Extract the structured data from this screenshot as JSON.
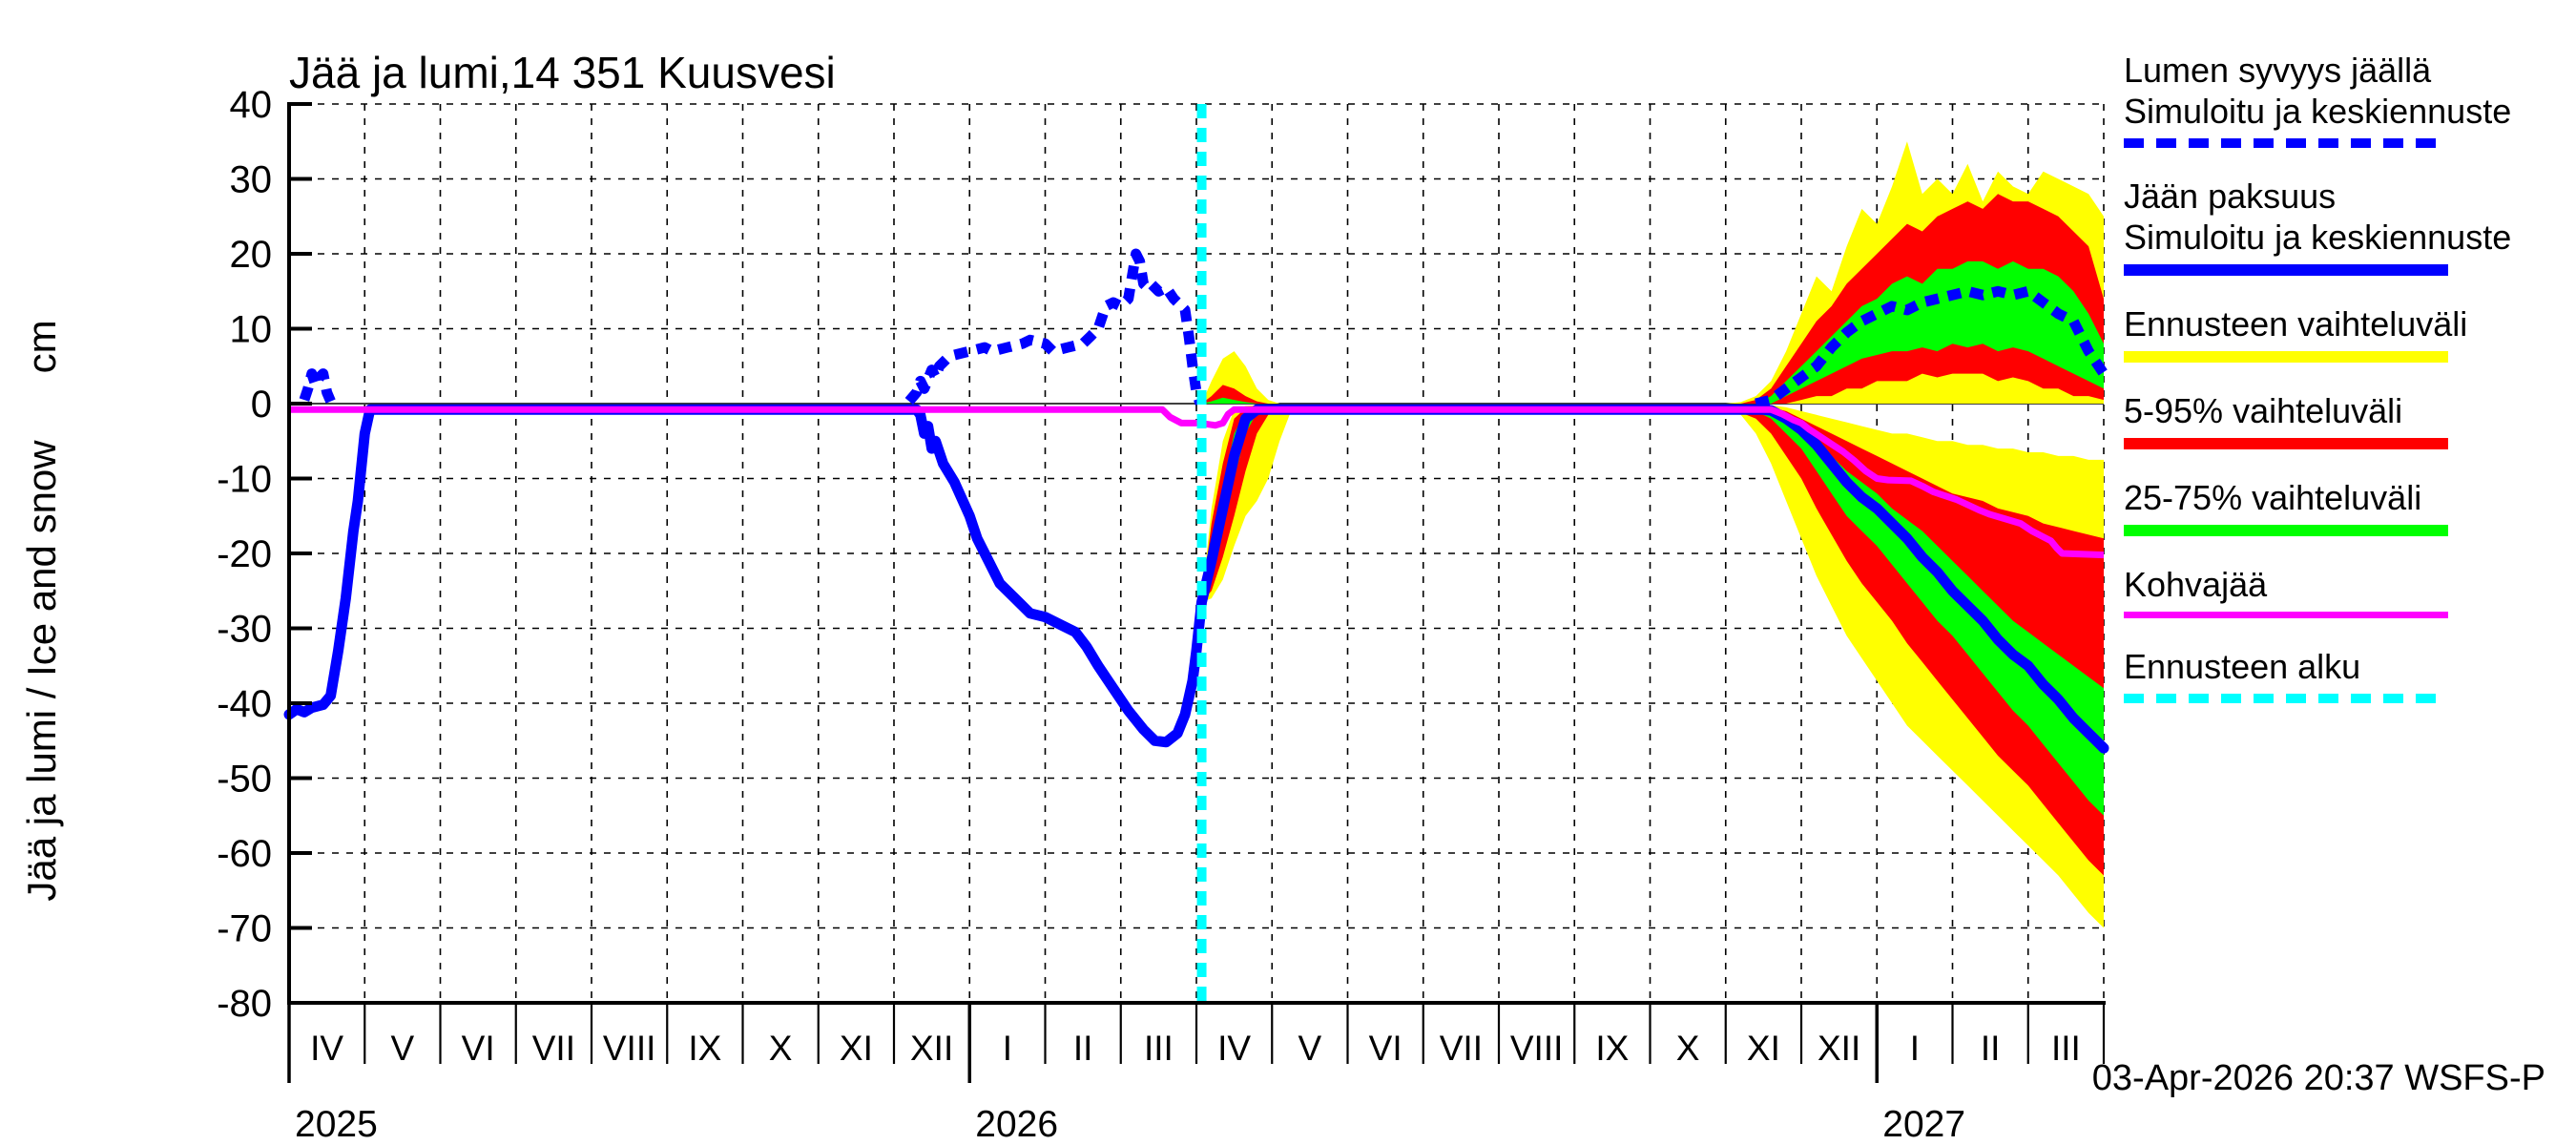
{
  "title": "Jää ja lumi,14 351 Kuusvesi",
  "timestamp": "03-Apr-2026 20:37 WSFS-P",
  "y_axis": {
    "label": "Jää ja lumi / Ice and snow",
    "unit": "cm",
    "min": -80,
    "max": 40,
    "tick_values": [
      40,
      30,
      20,
      10,
      0,
      -10,
      -20,
      -30,
      -40,
      -50,
      -60,
      -70,
      -80
    ]
  },
  "x_axis": {
    "month_labels": [
      "IV",
      "V",
      "VI",
      "VII",
      "VIII",
      "IX",
      "X",
      "XI",
      "XII",
      "I",
      "II",
      "III",
      "IV",
      "V",
      "VI",
      "VII",
      "VIII",
      "IX",
      "X",
      "XI",
      "XII",
      "I",
      "II",
      "III"
    ],
    "year_labels": [
      {
        "label": "2025",
        "month_index": 0
      },
      {
        "label": "2026",
        "month_index": 9
      },
      {
        "label": "2027",
        "month_index": 21
      }
    ]
  },
  "colors": {
    "simulated": "#0000ff",
    "range_minmax": "#ffff00",
    "range_5_95": "#ff0000",
    "range_25_75": "#00ff00",
    "kohvajaa": "#ff00ff",
    "forecast_start": "#00ffff",
    "axis": "#000000",
    "background": "#ffffff"
  },
  "legend": [
    {
      "name": "lumen-syvyys",
      "lines": [
        "Lumen syvyys jäällä",
        "Simuloitu ja keskiennuste"
      ],
      "sample": {
        "color": "#0000ff",
        "style": "dashed",
        "thickness": 10
      }
    },
    {
      "name": "jaan-paksuus",
      "lines": [
        "Jään paksuus",
        "Simuloitu ja keskiennuste"
      ],
      "sample": {
        "color": "#0000ff",
        "style": "solid",
        "thickness": 12
      }
    },
    {
      "name": "ennusteen-vaihteluvali",
      "lines": [
        "Ennusteen vaihteluväli"
      ],
      "sample": {
        "color": "#ffff00",
        "style": "solid",
        "thickness": 12
      }
    },
    {
      "name": "vaihteluvali-5-95",
      "lines": [
        "5-95% vaihteluväli"
      ],
      "sample": {
        "color": "#ff0000",
        "style": "solid",
        "thickness": 12
      }
    },
    {
      "name": "vaihteluvali-25-75",
      "lines": [
        "25-75% vaihteluväli"
      ],
      "sample": {
        "color": "#00ff00",
        "style": "solid",
        "thickness": 12
      }
    },
    {
      "name": "kohvajaa",
      "lines": [
        "Kohvajää"
      ],
      "sample": {
        "color": "#ff00ff",
        "style": "solid",
        "thickness": 7
      }
    },
    {
      "name": "ennusteen-alku",
      "lines": [
        "Ennusteen alku"
      ],
      "sample": {
        "color": "#00ffff",
        "style": "dashed",
        "thickness": 10
      }
    }
  ],
  "chart_data": {
    "type": "line",
    "x_unit": "months since 1 Apr 2025",
    "y_unit": "cm",
    "xlim": [
      0,
      24
    ],
    "ylim": [
      -80,
      40
    ],
    "grid": "dotted, every month vertical, every 10 cm horizontal, solid line at 0",
    "forecast_start_t": 12.07,
    "ice_simulated_and_median": [
      [
        0,
        -41.5
      ],
      [
        0.1,
        -40.8
      ],
      [
        0.2,
        -41.2
      ],
      [
        0.3,
        -40.6
      ],
      [
        0.45,
        -40.2
      ],
      [
        0.55,
        -39
      ],
      [
        0.65,
        -33
      ],
      [
        0.75,
        -26
      ],
      [
        0.85,
        -17
      ],
      [
        0.91,
        -13
      ],
      [
        1.0,
        -4
      ],
      [
        1.07,
        -0.8
      ],
      [
        8.3,
        -0.8
      ],
      [
        8.35,
        -1.5
      ],
      [
        8.4,
        -4
      ],
      [
        8.45,
        -3
      ],
      [
        8.5,
        -6
      ],
      [
        8.55,
        -5
      ],
      [
        8.65,
        -8
      ],
      [
        8.8,
        -10.5
      ],
      [
        9.0,
        -15
      ],
      [
        9.1,
        -18
      ],
      [
        9.25,
        -21
      ],
      [
        9.4,
        -24
      ],
      [
        9.6,
        -26
      ],
      [
        9.8,
        -28
      ],
      [
        10.0,
        -28.5
      ],
      [
        10.2,
        -29.5
      ],
      [
        10.4,
        -30.5
      ],
      [
        10.55,
        -32.5
      ],
      [
        10.7,
        -35
      ],
      [
        10.9,
        -38
      ],
      [
        11.1,
        -41
      ],
      [
        11.3,
        -43.5
      ],
      [
        11.45,
        -45
      ],
      [
        11.6,
        -45.2
      ],
      [
        11.75,
        -44
      ],
      [
        11.85,
        -41.5
      ],
      [
        11.95,
        -37
      ],
      [
        12.0,
        -33
      ],
      [
        12.07,
        -26.5
      ],
      [
        12.2,
        -21
      ],
      [
        12.35,
        -14
      ],
      [
        12.5,
        -7
      ],
      [
        12.65,
        -2
      ],
      [
        12.8,
        -0.8
      ],
      [
        19.5,
        -0.8
      ],
      [
        19.6,
        -0.9
      ],
      [
        19.8,
        -2
      ],
      [
        20,
        -3.5
      ],
      [
        20.2,
        -5.5
      ],
      [
        20.4,
        -8
      ],
      [
        20.6,
        -10.5
      ],
      [
        20.8,
        -12.5
      ],
      [
        21,
        -14
      ],
      [
        21.2,
        -16
      ],
      [
        21.4,
        -18
      ],
      [
        21.6,
        -20.5
      ],
      [
        21.8,
        -22.5
      ],
      [
        22,
        -25
      ],
      [
        22.2,
        -27
      ],
      [
        22.4,
        -29
      ],
      [
        22.6,
        -31.5
      ],
      [
        22.8,
        -33.5
      ],
      [
        23,
        -35
      ],
      [
        23.2,
        -37.5
      ],
      [
        23.4,
        -39.5
      ],
      [
        23.6,
        -42
      ],
      [
        23.8,
        -44
      ],
      [
        24,
        -46
      ]
    ],
    "snow_simulated_segments": [
      [
        [
          0.2,
          0.5
        ],
        [
          0.25,
          2
        ],
        [
          0.3,
          4
        ],
        [
          0.35,
          2.5
        ],
        [
          0.4,
          3.5
        ],
        [
          0.45,
          4
        ],
        [
          0.5,
          1.5
        ],
        [
          0.55,
          0.3
        ]
      ],
      [
        [
          8.2,
          0.3
        ],
        [
          8.3,
          1.5
        ],
        [
          8.35,
          3
        ],
        [
          8.4,
          2
        ],
        [
          8.5,
          4.5
        ],
        [
          8.55,
          3.5
        ],
        [
          8.6,
          5
        ],
        [
          8.7,
          6
        ],
        [
          8.8,
          6.5
        ],
        [
          9.0,
          7
        ],
        [
          9.2,
          7.5
        ],
        [
          9.3,
          7
        ],
        [
          9.5,
          7.5
        ],
        [
          9.7,
          8
        ],
        [
          9.8,
          8.5
        ],
        [
          10.0,
          8
        ],
        [
          10.1,
          7
        ],
        [
          10.3,
          7.5
        ],
        [
          10.5,
          8
        ],
        [
          10.6,
          9
        ],
        [
          10.7,
          10
        ],
        [
          10.8,
          13
        ],
        [
          10.9,
          13.5
        ],
        [
          11.0,
          13
        ],
        [
          11.1,
          14
        ],
        [
          11.15,
          17
        ],
        [
          11.2,
          20
        ],
        [
          11.25,
          19
        ],
        [
          11.3,
          16
        ],
        [
          11.35,
          15.5
        ],
        [
          11.4,
          16
        ],
        [
          11.5,
          15
        ],
        [
          11.6,
          15.5
        ],
        [
          11.7,
          14
        ],
        [
          11.8,
          13
        ],
        [
          11.85,
          12.5
        ],
        [
          11.9,
          9
        ],
        [
          11.95,
          5
        ],
        [
          12.0,
          1.5
        ],
        [
          12.05,
          0
        ]
      ]
    ],
    "snow_forecast_median": [
      [
        19.4,
        0
      ],
      [
        19.6,
        0.5
      ],
      [
        19.8,
        2
      ],
      [
        20,
        3.5
      ],
      [
        20.2,
        5
      ],
      [
        20.4,
        7.5
      ],
      [
        20.6,
        9.5
      ],
      [
        20.8,
        11
      ],
      [
        21,
        12
      ],
      [
        21.2,
        13
      ],
      [
        21.4,
        12.5
      ],
      [
        21.6,
        13.5
      ],
      [
        21.8,
        14
      ],
      [
        22,
        14.5
      ],
      [
        22.2,
        15
      ],
      [
        22.4,
        14.5
      ],
      [
        22.6,
        15
      ],
      [
        22.8,
        14.5
      ],
      [
        23,
        15
      ],
      [
        23.2,
        13.5
      ],
      [
        23.4,
        12
      ],
      [
        23.6,
        11
      ],
      [
        23.8,
        7
      ],
      [
        24,
        4
      ]
    ],
    "kohvajaa": [
      [
        0,
        -0.8
      ],
      [
        11.55,
        -0.8
      ],
      [
        11.65,
        -1.8
      ],
      [
        11.8,
        -2.6
      ],
      [
        12.05,
        -2.6
      ],
      [
        12.25,
        -2.9
      ],
      [
        12.35,
        -2.6
      ],
      [
        12.42,
        -1.4
      ],
      [
        12.5,
        -0.8
      ],
      [
        19.6,
        -0.8
      ],
      [
        19.75,
        -1.4
      ],
      [
        19.9,
        -2.2
      ],
      [
        20.0,
        -2.6
      ],
      [
        20.1,
        -3.4
      ],
      [
        20.25,
        -4.4
      ],
      [
        20.4,
        -5.4
      ],
      [
        20.55,
        -6.4
      ],
      [
        20.7,
        -7.6
      ],
      [
        20.85,
        -9
      ],
      [
        21.0,
        -10
      ],
      [
        21.15,
        -10.2
      ],
      [
        21.45,
        -10.3
      ],
      [
        21.6,
        -11
      ],
      [
        21.75,
        -11.8
      ],
      [
        21.9,
        -12.3
      ],
      [
        22.05,
        -12.8
      ],
      [
        22.2,
        -13.5
      ],
      [
        22.35,
        -14.2
      ],
      [
        22.5,
        -14.8
      ],
      [
        22.7,
        -15.4
      ],
      [
        22.9,
        -16
      ],
      [
        23.05,
        -17
      ],
      [
        23.2,
        -17.8
      ],
      [
        23.3,
        -18.3
      ],
      [
        23.38,
        -19.3
      ],
      [
        23.45,
        -20
      ],
      [
        24,
        -20.2
      ]
    ],
    "band_t": [
      12.07,
      12.2,
      12.35,
      12.5,
      12.65,
      12.8,
      12.95,
      13.1,
      13.25,
      14,
      15,
      16,
      17,
      18,
      19,
      19.2,
      19.4,
      19.6,
      19.8,
      20,
      20.2,
      20.4,
      20.6,
      20.8,
      21,
      21.2,
      21.4,
      21.6,
      21.8,
      22,
      22.2,
      22.4,
      22.6,
      22.8,
      23,
      23.2,
      23.4,
      23.6,
      23.8,
      24
    ],
    "snow_bands": {
      "yellow_upper": [
        0,
        3,
        6,
        7,
        5,
        2,
        0.5,
        0,
        0,
        0,
        0,
        0,
        0,
        0,
        0,
        0.2,
        1,
        3,
        7,
        12,
        17,
        15,
        21,
        26,
        24,
        29,
        35,
        28,
        30,
        28,
        32,
        27,
        31,
        29,
        28,
        31,
        30,
        29,
        28,
        25
      ],
      "yellow_lower": [
        0,
        0,
        0,
        0,
        0,
        0,
        0,
        0,
        0,
        0,
        0,
        0,
        0,
        0,
        0,
        0,
        0,
        0,
        0,
        0,
        0,
        0,
        0,
        0,
        0,
        0,
        0,
        0,
        0,
        0,
        0,
        0,
        0,
        0,
        0,
        0,
        0,
        0,
        0,
        0
      ],
      "red_upper": [
        0,
        1,
        2.5,
        2,
        1,
        0.3,
        0,
        0,
        0,
        0,
        0,
        0,
        0,
        0,
        0,
        0,
        0.5,
        2,
        5,
        8,
        11,
        13,
        16,
        18,
        20,
        22,
        24,
        23,
        25,
        26,
        27,
        26,
        28,
        27,
        27,
        26,
        25,
        23,
        21,
        14
      ],
      "red_lower": [
        0,
        0,
        0,
        0,
        0,
        0,
        0,
        0,
        0,
        0,
        0,
        0,
        0,
        0,
        0,
        0,
        0,
        0,
        0,
        0.5,
        1,
        1,
        2,
        2,
        3,
        3,
        3,
        4,
        3.5,
        4,
        4,
        4,
        3,
        3.5,
        3,
        2,
        2,
        1,
        1,
        0.5
      ],
      "green_upper": [
        0,
        0.3,
        0.8,
        0.5,
        0.2,
        0,
        0,
        0,
        0,
        0,
        0,
        0,
        0,
        0,
        0,
        0,
        0,
        1,
        3,
        5,
        7,
        9,
        11,
        13,
        14,
        16,
        17,
        16,
        18,
        18,
        19,
        19,
        18,
        19,
        18,
        18,
        17,
        15,
        12,
        8
      ],
      "green_lower": [
        0,
        0,
        0,
        0,
        0,
        0,
        0,
        0,
        0,
        0,
        0,
        0,
        0,
        0,
        0,
        0,
        0,
        0,
        1,
        2,
        3,
        4,
        5,
        6,
        6.5,
        7,
        7,
        7.5,
        7,
        8,
        7.5,
        8,
        7,
        7.5,
        7,
        6,
        5,
        4,
        3,
        2
      ]
    },
    "ice_bands": {
      "yellow_upper": [
        -26.5,
        -14,
        -5,
        -0.8,
        -0.3,
        -0.2,
        -0.2,
        -0.2,
        -0.2,
        -0.2,
        -0.2,
        -0.2,
        -0.2,
        -0.2,
        -0.2,
        -0.2,
        -0.2,
        -0.2,
        -0.5,
        -1,
        -1.5,
        -2,
        -2.5,
        -3,
        -3.5,
        -4,
        -4,
        -4.5,
        -5,
        -5,
        -5.5,
        -5.5,
        -6,
        -6,
        -6.5,
        -6.5,
        -7,
        -7,
        -7.5,
        -7.5
      ],
      "yellow_lower": [
        -26.5,
        -26,
        -23.5,
        -19,
        -15,
        -13,
        -10,
        -5,
        -1,
        -1.3,
        -1.3,
        -1.3,
        -1.3,
        -1.3,
        -1.3,
        -1.5,
        -4,
        -8,
        -13,
        -18,
        -23,
        -27,
        -31,
        -34,
        -37,
        -40,
        -43,
        -45,
        -47,
        -49,
        -51,
        -53,
        -55,
        -57,
        -59,
        -61,
        -63,
        -65.5,
        -68,
        -70
      ],
      "red_upper": [
        -26.5,
        -16,
        -8,
        -2,
        -0.6,
        -0.4,
        -0.3,
        -0.3,
        -0.3,
        -0.3,
        -0.3,
        -0.3,
        -0.3,
        -0.3,
        -0.3,
        -0.3,
        -0.3,
        -0.5,
        -1,
        -2,
        -3,
        -4,
        -5,
        -6,
        -7,
        -8,
        -9,
        -10,
        -11,
        -12,
        -12.5,
        -13,
        -14,
        -14.5,
        -15,
        -16,
        -16.5,
        -17,
        -17.5,
        -18
      ],
      "red_lower": [
        -26.5,
        -25,
        -20.5,
        -15,
        -9,
        -4,
        -1.5,
        -0.7,
        -0.6,
        -1.1,
        -1.1,
        -1.1,
        -1.1,
        -1.1,
        -1.1,
        -1.2,
        -2,
        -4,
        -7,
        -10,
        -14,
        -17.5,
        -21,
        -24,
        -26.5,
        -29,
        -32,
        -34.5,
        -37,
        -39.5,
        -42,
        -44.5,
        -47,
        -49,
        -51,
        -53.5,
        -56,
        -58.5,
        -61,
        -63
      ],
      "green_upper": [
        -26.5,
        -19,
        -11,
        -4,
        -1,
        -0.5,
        -0.4,
        -0.4,
        -0.4,
        -0.4,
        -0.4,
        -0.4,
        -0.4,
        -0.4,
        -0.4,
        -0.4,
        -0.4,
        -0.5,
        -1.5,
        -3,
        -5,
        -7,
        -9,
        -10.5,
        -12,
        -14,
        -15.5,
        -17,
        -19,
        -21,
        -23,
        -25,
        -27,
        -29,
        -30.5,
        -32,
        -33.5,
        -35,
        -36.5,
        -38
      ],
      "green_lower": [
        -26.5,
        -23,
        -17,
        -10,
        -4,
        -1.2,
        -0.6,
        -0.5,
        -0.5,
        -0.9,
        -0.9,
        -0.9,
        -0.9,
        -0.9,
        -0.9,
        -0.9,
        -1,
        -2,
        -4,
        -6,
        -9,
        -12,
        -15,
        -17,
        -19,
        -21.5,
        -24,
        -26.5,
        -29,
        -31,
        -33.5,
        -36,
        -38.5,
        -41,
        -43,
        -45.5,
        -48,
        -50.5,
        -53,
        -55
      ]
    }
  }
}
